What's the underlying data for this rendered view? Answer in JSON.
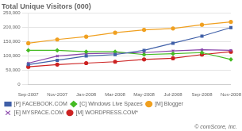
{
  "chart_data": {
    "type": "line",
    "title": "Total Unique Visitors (000)",
    "categories": [
      "Sep-2007",
      "Nov-2007",
      "Jan-2008",
      "Mar-2008",
      "May-2008",
      "Jul-2008",
      "Sep-2008",
      "Nov-2008"
    ],
    "series": [
      {
        "name": "[P] FACEBOOK.COM",
        "color": "#4060a8",
        "marker": "square",
        "values": [
          70000,
          85000,
          100000,
          105000,
          120000,
          145000,
          170000,
          200000
        ]
      },
      {
        "name": "[C] Windows Live Spaces",
        "color": "#44bb22",
        "marker": "diamond",
        "values": [
          120000,
          120000,
          115000,
          115000,
          105000,
          108000,
          112000,
          88000
        ]
      },
      {
        "name": "[M] Blogger",
        "color": "#f0a020",
        "marker": "circle",
        "values": [
          145000,
          158000,
          168000,
          182000,
          192000,
          197000,
          210000,
          220000
        ]
      },
      {
        "name": "[E] MYSPACE.COM",
        "color": "#8844aa",
        "marker": "cross",
        "values": [
          75000,
          100000,
          108000,
          110000,
          112000,
          118000,
          122000,
          120000
        ]
      },
      {
        "name": "[M] WORDPRESS.COM*",
        "color": "#cc2222",
        "marker": "circle",
        "values": [
          62000,
          70000,
          75000,
          80000,
          88000,
          92000,
          105000,
          115000
        ]
      }
    ],
    "ylim": [
      0,
      250000
    ],
    "yticks": [
      0,
      {
        "value": 50000,
        "label": "50,000"
      },
      {
        "value": 100000,
        "label": "100,000"
      },
      {
        "value": 150000,
        "label": "150,000"
      },
      {
        "value": 200000,
        "label": "200,000"
      },
      {
        "value": 250000,
        "label": "250,000"
      }
    ],
    "grid": true,
    "legend": "bottom",
    "annotations": [
      "© comScore, Inc."
    ]
  }
}
